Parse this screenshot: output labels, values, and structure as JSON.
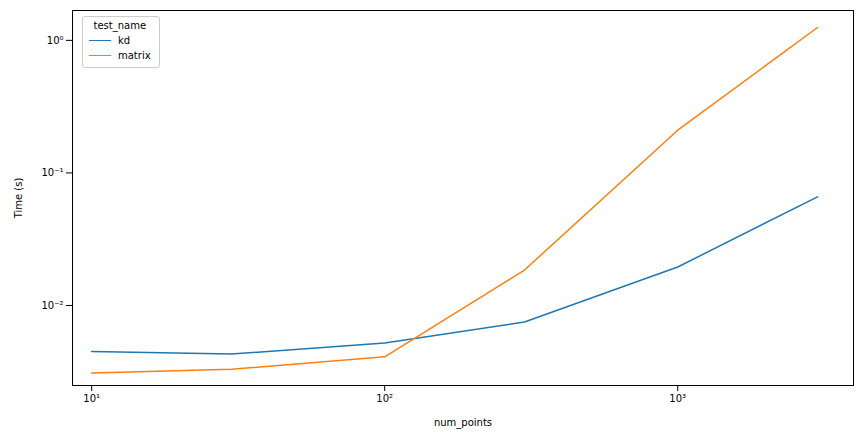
{
  "chart_data": {
    "type": "line",
    "x_label": "num_points",
    "y_label": "Time (s)",
    "legend_title": "test_name",
    "legend": "upper left",
    "log": true,
    "grid": false,
    "x": [
      10,
      30,
      100,
      300,
      1000,
      3000
    ],
    "series": [
      {
        "name": "kd",
        "color": "#1f77b4",
        "values": [
          0.0045,
          0.0043,
          0.0052,
          0.0075,
          0.0195,
          0.066
        ]
      },
      {
        "name": "matrix",
        "color": "#ff7f0e",
        "values": [
          0.0031,
          0.0033,
          0.0041,
          0.0185,
          0.21,
          1.25
        ]
      }
    ],
    "xlim": [
      8.6,
      3980
    ],
    "xticks": [
      {
        "value": 10,
        "label": "10¹"
      },
      {
        "value": 100,
        "label": "10²"
      },
      {
        "value": 1000,
        "label": "10³"
      }
    ],
    "ylim": [
      0.00249,
      1.68
    ],
    "yticks": [
      {
        "value": 0.01,
        "label": "10⁻²"
      },
      {
        "value": 0.1,
        "label": "10⁻¹"
      },
      {
        "value": 1,
        "label": "10⁰"
      }
    ]
  }
}
